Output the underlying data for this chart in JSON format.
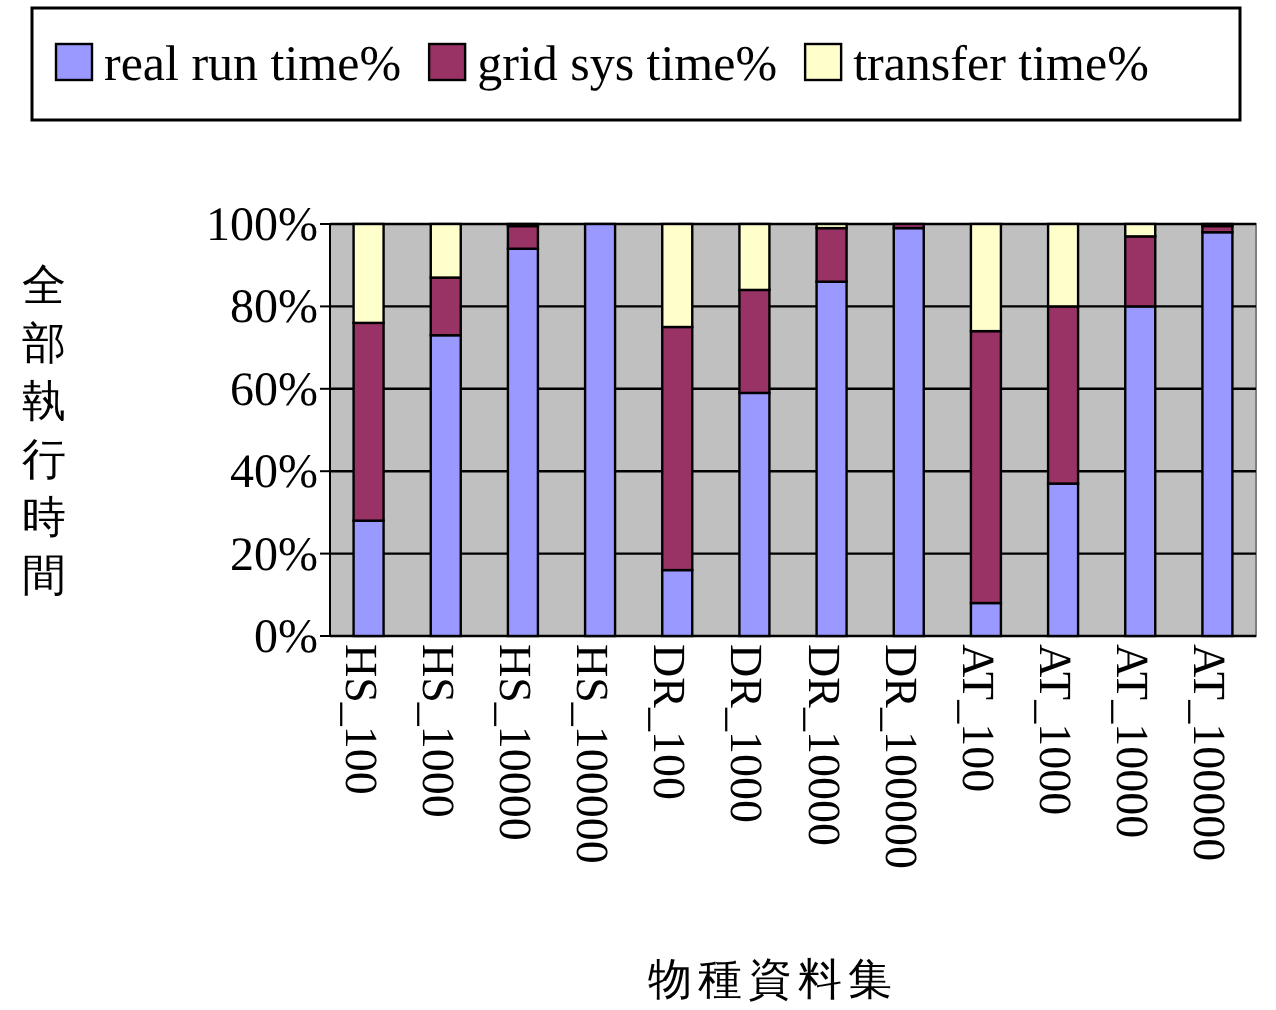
{
  "chart_data": {
    "type": "bar",
    "stacked": true,
    "xlabel": "物種資料集",
    "ylabel": "全部執行時間",
    "categories": [
      "HS_100",
      "HS_1000",
      "HS_10000",
      "HS_100000",
      "DR_100",
      "DR_1000",
      "DR_10000",
      "DR_100000",
      "AT_100",
      "AT_1000",
      "AT_10000",
      "AT_100000"
    ],
    "series": [
      {
        "name": "real run time%",
        "color": "#9999ff",
        "values": [
          28,
          73,
          94,
          100,
          16,
          59,
          86,
          99,
          8,
          37,
          80,
          98
        ]
      },
      {
        "name": "grid sys time%",
        "color": "#993366",
        "values": [
          48,
          14,
          5.5,
          0,
          59,
          25,
          13,
          1,
          66,
          43,
          17,
          1.5
        ]
      },
      {
        "name": "transfer time%",
        "color": "#ffffcc",
        "values": [
          24,
          13,
          0.5,
          0,
          25,
          16,
          1,
          0,
          26,
          20,
          3,
          0.5
        ]
      }
    ],
    "ylim": [
      0,
      100
    ],
    "yticks": [
      {
        "value": 0,
        "label": "0%"
      },
      {
        "value": 20,
        "label": "20%"
      },
      {
        "value": 40,
        "label": "40%"
      },
      {
        "value": 60,
        "label": "60%"
      },
      {
        "value": 80,
        "label": "80%"
      },
      {
        "value": 100,
        "label": "100%"
      }
    ],
    "grid": "y",
    "legend": "top"
  }
}
